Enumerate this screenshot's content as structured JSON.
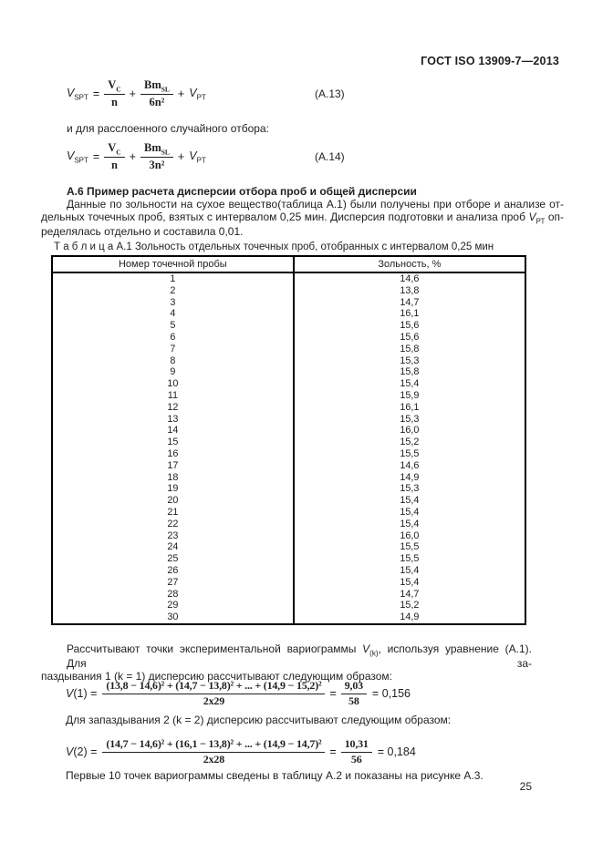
{
  "header": {
    "standard_title": "ГОСТ ISO 13909-7—2013"
  },
  "formula_a13": {
    "lhs_var": "V",
    "lhs_sub": "SPT",
    "equals": "=",
    "frac1_num": "V",
    "frac1_num_sub": "C",
    "frac1_den": "n",
    "plus1": "+",
    "frac2_num": "Bm",
    "frac2_num_sub": "SL",
    "frac2_den": "6n²",
    "plus2": "+",
    "term_var": "V",
    "term_sub": "PT",
    "label": "(А.13)"
  },
  "stratified_note": "и для расслоенного случайного отбора:",
  "formula_a14": {
    "lhs_var": "V",
    "lhs_sub": "SPT",
    "equals": "=",
    "frac1_num": "V",
    "frac1_num_sub": "C",
    "frac1_den": "n",
    "plus1": "+",
    "frac2_num": "Bm",
    "frac2_num_sub": "SL",
    "frac2_den": "3n²",
    "plus2": "+",
    "term_var": "V",
    "term_sub": "PT",
    "label": "(А.14)"
  },
  "section_a6": {
    "heading": "А.6 Пример расчета дисперсии отбора проб и общей дисперсии",
    "line1": "Данные по зольности на сухое вещество(таблица А.1) были получены при отборе и анализе от-",
    "line2_pre": "дельных точечных проб, взятых с интервалом 0,25 мин. Дисперсия подготовки и анализа проб ",
    "line2_var": "V",
    "line2_var_sub": "РТ",
    "line2_post": " оп-",
    "line3": "ределялась отдельно и составила 0,01."
  },
  "table": {
    "caption": "Т а б л и ц а А.1 Зольность отдельных точечных проб, отобранных с интервалом 0,25 мин",
    "columns": [
      "Номер точечной пробы",
      "Зольность, %"
    ],
    "rows": [
      [
        "1",
        "14,6"
      ],
      [
        "2",
        "13,8"
      ],
      [
        "3",
        "14,7"
      ],
      [
        "4",
        "16,1"
      ],
      [
        "5",
        "15,6"
      ],
      [
        "6",
        "15,6"
      ],
      [
        "7",
        "15,8"
      ],
      [
        "8",
        "15,3"
      ],
      [
        "9",
        "15,8"
      ],
      [
        "10",
        "15,4"
      ],
      [
        "11",
        "15,9"
      ],
      [
        "12",
        "16,1"
      ],
      [
        "13",
        "15,3"
      ],
      [
        "14",
        "16,0"
      ],
      [
        "15",
        "15,2"
      ],
      [
        "16",
        "15,5"
      ],
      [
        "17",
        "14,6"
      ],
      [
        "18",
        "14,9"
      ],
      [
        "19",
        "15,3"
      ],
      [
        "20",
        "15,4"
      ],
      [
        "21",
        "15,4"
      ],
      [
        "22",
        "15,4"
      ],
      [
        "23",
        "16,0"
      ],
      [
        "24",
        "15,5"
      ],
      [
        "25",
        "15,5"
      ],
      [
        "26",
        "15,4"
      ],
      [
        "27",
        "15,4"
      ],
      [
        "28",
        "14,7"
      ],
      [
        "29",
        "15,2"
      ],
      [
        "30",
        "14,9"
      ]
    ]
  },
  "variogram": {
    "p1_pre": "Рассчитывают точки экспериментальной вариограммы ",
    "p1_var": "V",
    "p1_var_sub": "(k)",
    "p1_post": ", используя уравнение (А.1). Для за-",
    "p1_line2": "паздывания 1 (k = 1) дисперсию рассчитывают следующим образом:",
    "v1": {
      "lhs_var": "V",
      "lhs_rest": "(1) =",
      "numerator": "(13,8 − 14,6)² + (14,7 − 13,8)² + ... + (14,9 − 15,2)²",
      "denominator": "2x29",
      "equals": "=",
      "frac2_num": "9,03",
      "frac2_den": "58",
      "result": "= 0,156"
    },
    "p2": "Для запаздывания 2 (k = 2) дисперсию рассчитывают следующим образом:",
    "v2": {
      "lhs_var": "V",
      "lhs_rest": "(2) =",
      "numerator": "(14,7 − 14,6)² + (16,1 − 13,8)² + ... + (14,9 − 14,7)²",
      "denominator": "2x28",
      "equals": "=",
      "frac2_num": "10,31",
      "frac2_den": "56",
      "result": "= 0,184"
    },
    "closing": "Первые 10 точек вариограммы сведены в таблицу А.2 и показаны на рисунке А.3."
  },
  "footer": {
    "page_number": "25"
  }
}
